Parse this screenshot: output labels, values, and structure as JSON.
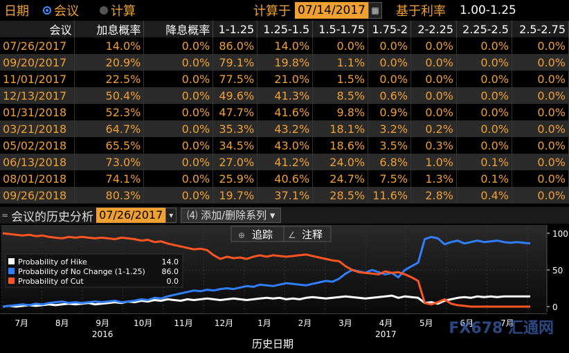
{
  "topbar": {
    "date_label": "日期",
    "radio_meeting": "会议",
    "radio_calc": "计算",
    "calc_at_label": "计算于",
    "calc_date": "07/14/2017",
    "base_rate_label": "基于利率",
    "base_rate": "1.00-1.25"
  },
  "table": {
    "headers": [
      "会议",
      "加息概率",
      "降息概率",
      "1-1.25",
      "1.25-1.5",
      "1.5-1.75",
      "1.75-2",
      "2-2.25",
      "2.25-2.5",
      "2.5-2.75"
    ],
    "rows": [
      [
        "07/26/2017",
        "14.0%",
        "0.0%",
        "86.0%",
        "14.0%",
        "0.0%",
        "0.0%",
        "0.0%",
        "0.0%",
        "0.0%"
      ],
      [
        "09/20/2017",
        "20.9%",
        "0.0%",
        "79.1%",
        "19.8%",
        "1.1%",
        "0.0%",
        "0.0%",
        "0.0%",
        "0.0%"
      ],
      [
        "11/01/2017",
        "22.5%",
        "0.0%",
        "77.5%",
        "21.0%",
        "1.5%",
        "0.0%",
        "0.0%",
        "0.0%",
        "0.0%"
      ],
      [
        "12/13/2017",
        "50.4%",
        "0.0%",
        "49.6%",
        "41.3%",
        "8.5%",
        "0.6%",
        "0.0%",
        "0.0%",
        "0.0%"
      ],
      [
        "01/31/2018",
        "52.3%",
        "0.0%",
        "47.7%",
        "41.6%",
        "9.8%",
        "0.9%",
        "0.0%",
        "0.0%",
        "0.0%"
      ],
      [
        "03/21/2018",
        "64.7%",
        "0.0%",
        "35.3%",
        "43.2%",
        "18.1%",
        "3.2%",
        "0.2%",
        "0.0%",
        "0.0%"
      ],
      [
        "05/02/2018",
        "65.5%",
        "0.0%",
        "34.5%",
        "43.0%",
        "18.6%",
        "3.5%",
        "0.3%",
        "0.0%",
        "0.0%"
      ],
      [
        "06/13/2018",
        "73.0%",
        "0.0%",
        "27.0%",
        "41.2%",
        "24.0%",
        "6.8%",
        "1.0%",
        "0.1%",
        "0.0%"
      ],
      [
        "08/01/2018",
        "74.1%",
        "0.0%",
        "25.9%",
        "40.6%",
        "24.7%",
        "7.5%",
        "1.3%",
        "0.1%",
        "0.0%"
      ],
      [
        "09/26/2018",
        "80.3%",
        "0.0%",
        "19.7%",
        "37.1%",
        "28.5%",
        "11.6%",
        "2.8%",
        "0.4%",
        "0.0%"
      ]
    ]
  },
  "history": {
    "title": "会议的历史分析",
    "date": "07/26/2017",
    "add_remove": "添加/删除系列",
    "track": "追踪",
    "annotate": "注释",
    "xlabel": "历史日期",
    "watermark": "FX678 汇通网"
  },
  "chart_data": {
    "type": "line",
    "x_labels": [
      "7月",
      "8月",
      "9月",
      "10月",
      "11月",
      "12月",
      "1月",
      "2月",
      "3月",
      "4月",
      "5月",
      "6月",
      "7月"
    ],
    "year_labels": [
      {
        "label": "2016",
        "at": "9月"
      },
      {
        "label": "2017",
        "at": "4月"
      }
    ],
    "ylim": [
      0,
      100
    ],
    "yticks": [
      0,
      50,
      100
    ],
    "series": [
      {
        "name": "Probability of Hike",
        "last": "14.0",
        "color": "#ffffff",
        "values": [
          0,
          1,
          0,
          1,
          2,
          1,
          2,
          3,
          2,
          3,
          4,
          3,
          4,
          5,
          3,
          4,
          5,
          6,
          5,
          7,
          6,
          8,
          7,
          9,
          8,
          10,
          9,
          8,
          10,
          9,
          10,
          11,
          10,
          9,
          10,
          11,
          10,
          9,
          10,
          11,
          12,
          11,
          12,
          10,
          11,
          10,
          12,
          13,
          12,
          11,
          12,
          13,
          14,
          13,
          12,
          11,
          12,
          13,
          14,
          15,
          12,
          14,
          13,
          12,
          5,
          6,
          4,
          8,
          10,
          12,
          13,
          12,
          14,
          13,
          14,
          13,
          14,
          14,
          14,
          14,
          14
        ]
      },
      {
        "name": "Probability of No Change (1-1.25)",
        "last": "86.0",
        "color": "#2f7fff",
        "values": [
          0,
          1,
          2,
          3,
          2,
          4,
          3,
          5,
          6,
          7,
          5,
          6,
          5,
          6,
          7,
          6,
          7,
          8,
          6,
          7,
          8,
          10,
          9,
          12,
          11,
          14,
          16,
          18,
          20,
          22,
          21,
          23,
          22,
          24,
          25,
          24,
          26,
          28,
          27,
          30,
          29,
          28,
          30,
          32,
          31,
          30,
          29,
          31,
          33,
          35,
          34,
          38,
          45,
          50,
          48,
          46,
          50,
          47,
          44,
          46,
          40,
          50,
          55,
          60,
          92,
          95,
          93,
          85,
          88,
          90,
          86,
          88,
          90,
          88,
          89,
          90,
          88,
          87,
          88,
          87,
          86
        ]
      },
      {
        "name": "Probability of Cut",
        "last": "0.0",
        "color": "#ff5522",
        "values": [
          100,
          99,
          98,
          97,
          98,
          96,
          97,
          95,
          94,
          93,
          95,
          94,
          95,
          94,
          93,
          94,
          93,
          92,
          94,
          93,
          92,
          90,
          91,
          88,
          89,
          86,
          84,
          82,
          80,
          78,
          79,
          77,
          70,
          65,
          68,
          66,
          67,
          65,
          68,
          70,
          68,
          70,
          69,
          68,
          69,
          70,
          71,
          69,
          67,
          65,
          63,
          62,
          55,
          50,
          47,
          46,
          45,
          44,
          48,
          46,
          47,
          44,
          40,
          35,
          5,
          3,
          6,
          10,
          4,
          2,
          1,
          0,
          0,
          0,
          0,
          0,
          0,
          0,
          0,
          0,
          0
        ]
      }
    ]
  }
}
